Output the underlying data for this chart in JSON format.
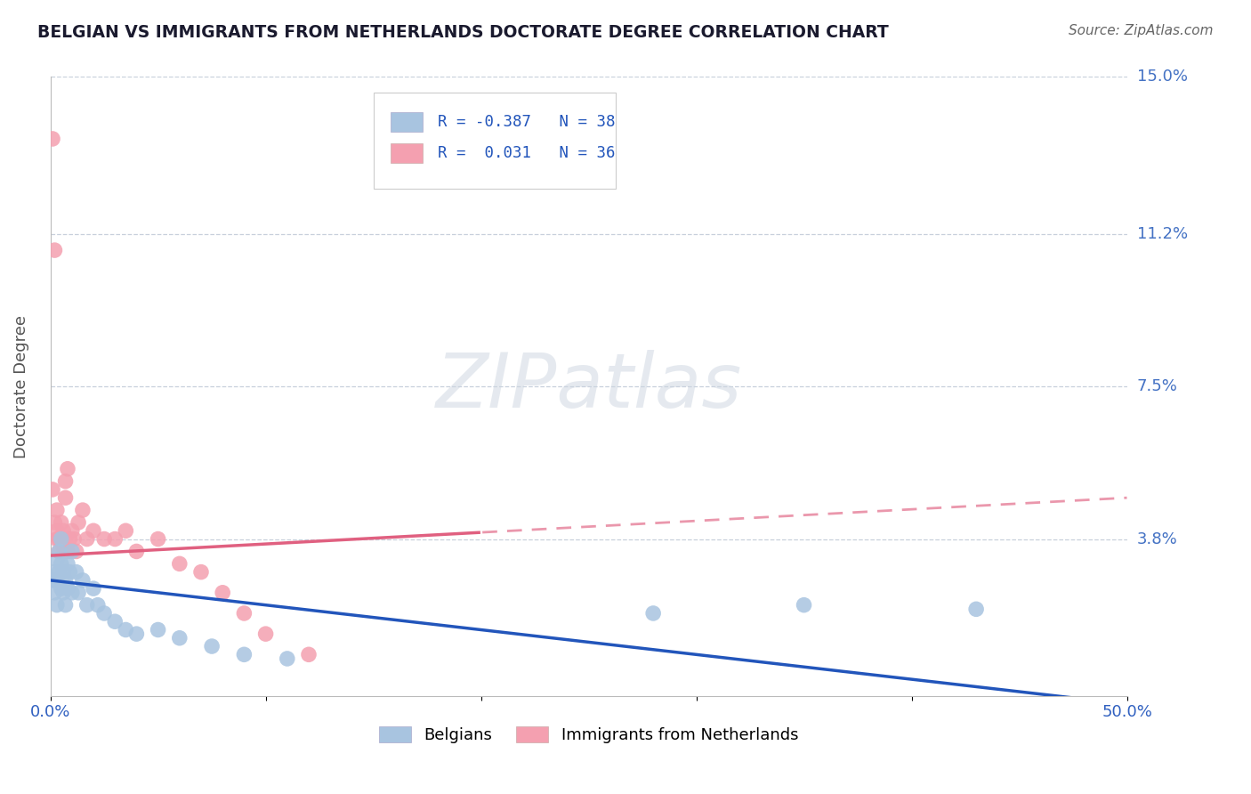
{
  "title": "BELGIAN VS IMMIGRANTS FROM NETHERLANDS DOCTORATE DEGREE CORRELATION CHART",
  "source": "Source: ZipAtlas.com",
  "ylabel": "Doctorate Degree",
  "xlim": [
    0.0,
    0.5
  ],
  "ylim": [
    0.0,
    0.15
  ],
  "ytick_labels_right": [
    "3.8%",
    "7.5%",
    "11.2%",
    "15.0%"
  ],
  "yticks_right": [
    0.038,
    0.075,
    0.112,
    0.15
  ],
  "watermark": "ZIPatlas",
  "belgians_color": "#a8c4e0",
  "netherlands_color": "#f4a0b0",
  "trend_blue_color": "#2255bb",
  "trend_pink_color": "#e06080",
  "R_belgian": -0.387,
  "N_belgian": 38,
  "R_netherlands": 0.031,
  "N_netherlands": 36,
  "belgians_x": [
    0.001,
    0.002,
    0.002,
    0.003,
    0.003,
    0.003,
    0.004,
    0.004,
    0.005,
    0.005,
    0.005,
    0.006,
    0.006,
    0.007,
    0.007,
    0.008,
    0.008,
    0.009,
    0.01,
    0.01,
    0.012,
    0.013,
    0.015,
    0.017,
    0.02,
    0.022,
    0.025,
    0.03,
    0.035,
    0.04,
    0.05,
    0.06,
    0.075,
    0.09,
    0.11,
    0.28,
    0.35,
    0.43
  ],
  "belgians_y": [
    0.028,
    0.03,
    0.025,
    0.033,
    0.028,
    0.022,
    0.035,
    0.03,
    0.038,
    0.032,
    0.026,
    0.03,
    0.025,
    0.028,
    0.022,
    0.032,
    0.026,
    0.03,
    0.035,
    0.025,
    0.03,
    0.025,
    0.028,
    0.022,
    0.026,
    0.022,
    0.02,
    0.018,
    0.016,
    0.015,
    0.016,
    0.014,
    0.012,
    0.01,
    0.009,
    0.02,
    0.022,
    0.021
  ],
  "netherlands_x": [
    0.001,
    0.001,
    0.002,
    0.002,
    0.003,
    0.003,
    0.003,
    0.004,
    0.004,
    0.005,
    0.005,
    0.006,
    0.006,
    0.007,
    0.007,
    0.008,
    0.008,
    0.009,
    0.01,
    0.011,
    0.012,
    0.013,
    0.015,
    0.017,
    0.02,
    0.025,
    0.03,
    0.035,
    0.04,
    0.05,
    0.06,
    0.07,
    0.08,
    0.09,
    0.1,
    0.12
  ],
  "netherlands_y": [
    0.135,
    0.05,
    0.108,
    0.042,
    0.038,
    0.045,
    0.04,
    0.038,
    0.035,
    0.042,
    0.038,
    0.04,
    0.036,
    0.052,
    0.048,
    0.055,
    0.035,
    0.038,
    0.04,
    0.038,
    0.035,
    0.042,
    0.045,
    0.038,
    0.04,
    0.038,
    0.038,
    0.04,
    0.035,
    0.038,
    0.032,
    0.03,
    0.025,
    0.02,
    0.015,
    0.01
  ],
  "background_color": "#ffffff",
  "grid_color": "#c8d0dc",
  "title_color": "#1a1a2e",
  "axis_label_color": "#555555",
  "right_tick_color": "#4472c4",
  "source_color": "#666666"
}
